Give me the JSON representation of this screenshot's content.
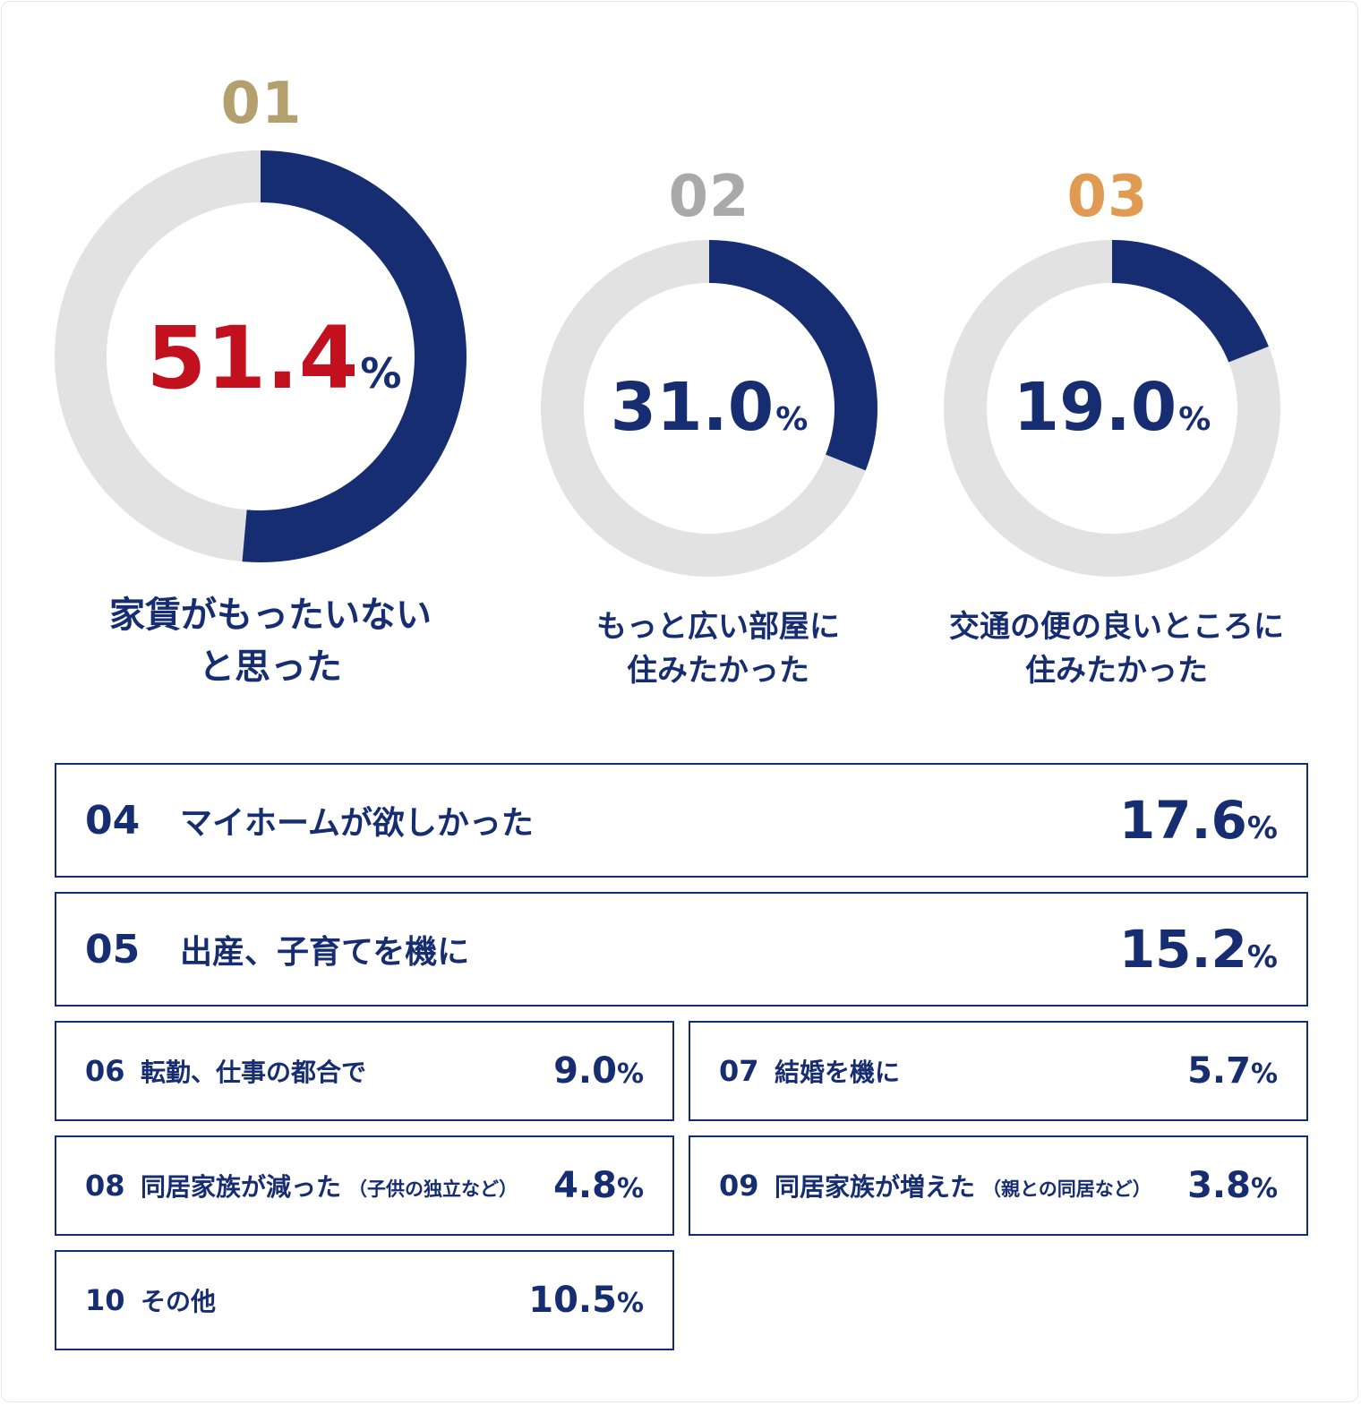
{
  "chart_data": {
    "type": "donut",
    "top3": [
      {
        "rank": "01",
        "rank_color": "#b49f6e",
        "value": 51.4,
        "value_text": "51.4",
        "unit": "%",
        "value_color": "#c3101f",
        "label_lines": [
          "家賃がもったいない",
          "と思った"
        ]
      },
      {
        "rank": "02",
        "rank_color": "#a9a9a9",
        "value": 31.0,
        "value_text": "31.0",
        "unit": "%",
        "value_color": "#172d72",
        "label_lines": [
          "もっと広い部屋に",
          "住みたかった"
        ]
      },
      {
        "rank": "03",
        "rank_color": "#e09a52",
        "value": 19.0,
        "value_text": "19.0",
        "unit": "%",
        "value_color": "#172d72",
        "label_lines": [
          "交通の便の良いところに",
          "住みたかった"
        ]
      }
    ],
    "others": [
      {
        "rank": "04",
        "label": "マイホームが欲しかった",
        "note": "",
        "value": 17.6,
        "value_text": "17.6",
        "unit": "%"
      },
      {
        "rank": "05",
        "label": "出産、子育てを機に",
        "note": "",
        "value": 15.2,
        "value_text": "15.2",
        "unit": "%"
      },
      {
        "rank": "06",
        "label": "転勤、仕事の都合で",
        "note": "",
        "value": 9.0,
        "value_text": "9.0",
        "unit": "%"
      },
      {
        "rank": "07",
        "label": "結婚を機に",
        "note": "",
        "value": 5.7,
        "value_text": "5.7",
        "unit": "%"
      },
      {
        "rank": "08",
        "label": "同居家族が減った",
        "note": "（子供の独立など）",
        "value": 4.8,
        "value_text": "4.8",
        "unit": "%"
      },
      {
        "rank": "09",
        "label": "同居家族が増えた",
        "note": "（親との同居など）",
        "value": 3.8,
        "value_text": "3.8",
        "unit": "%"
      },
      {
        "rank": "10",
        "label": "その他",
        "note": "",
        "value": 10.5,
        "value_text": "10.5",
        "unit": "%"
      }
    ]
  },
  "colors": {
    "arc": "#172d72",
    "track": "#e2e2e2",
    "border": "#172d72"
  }
}
